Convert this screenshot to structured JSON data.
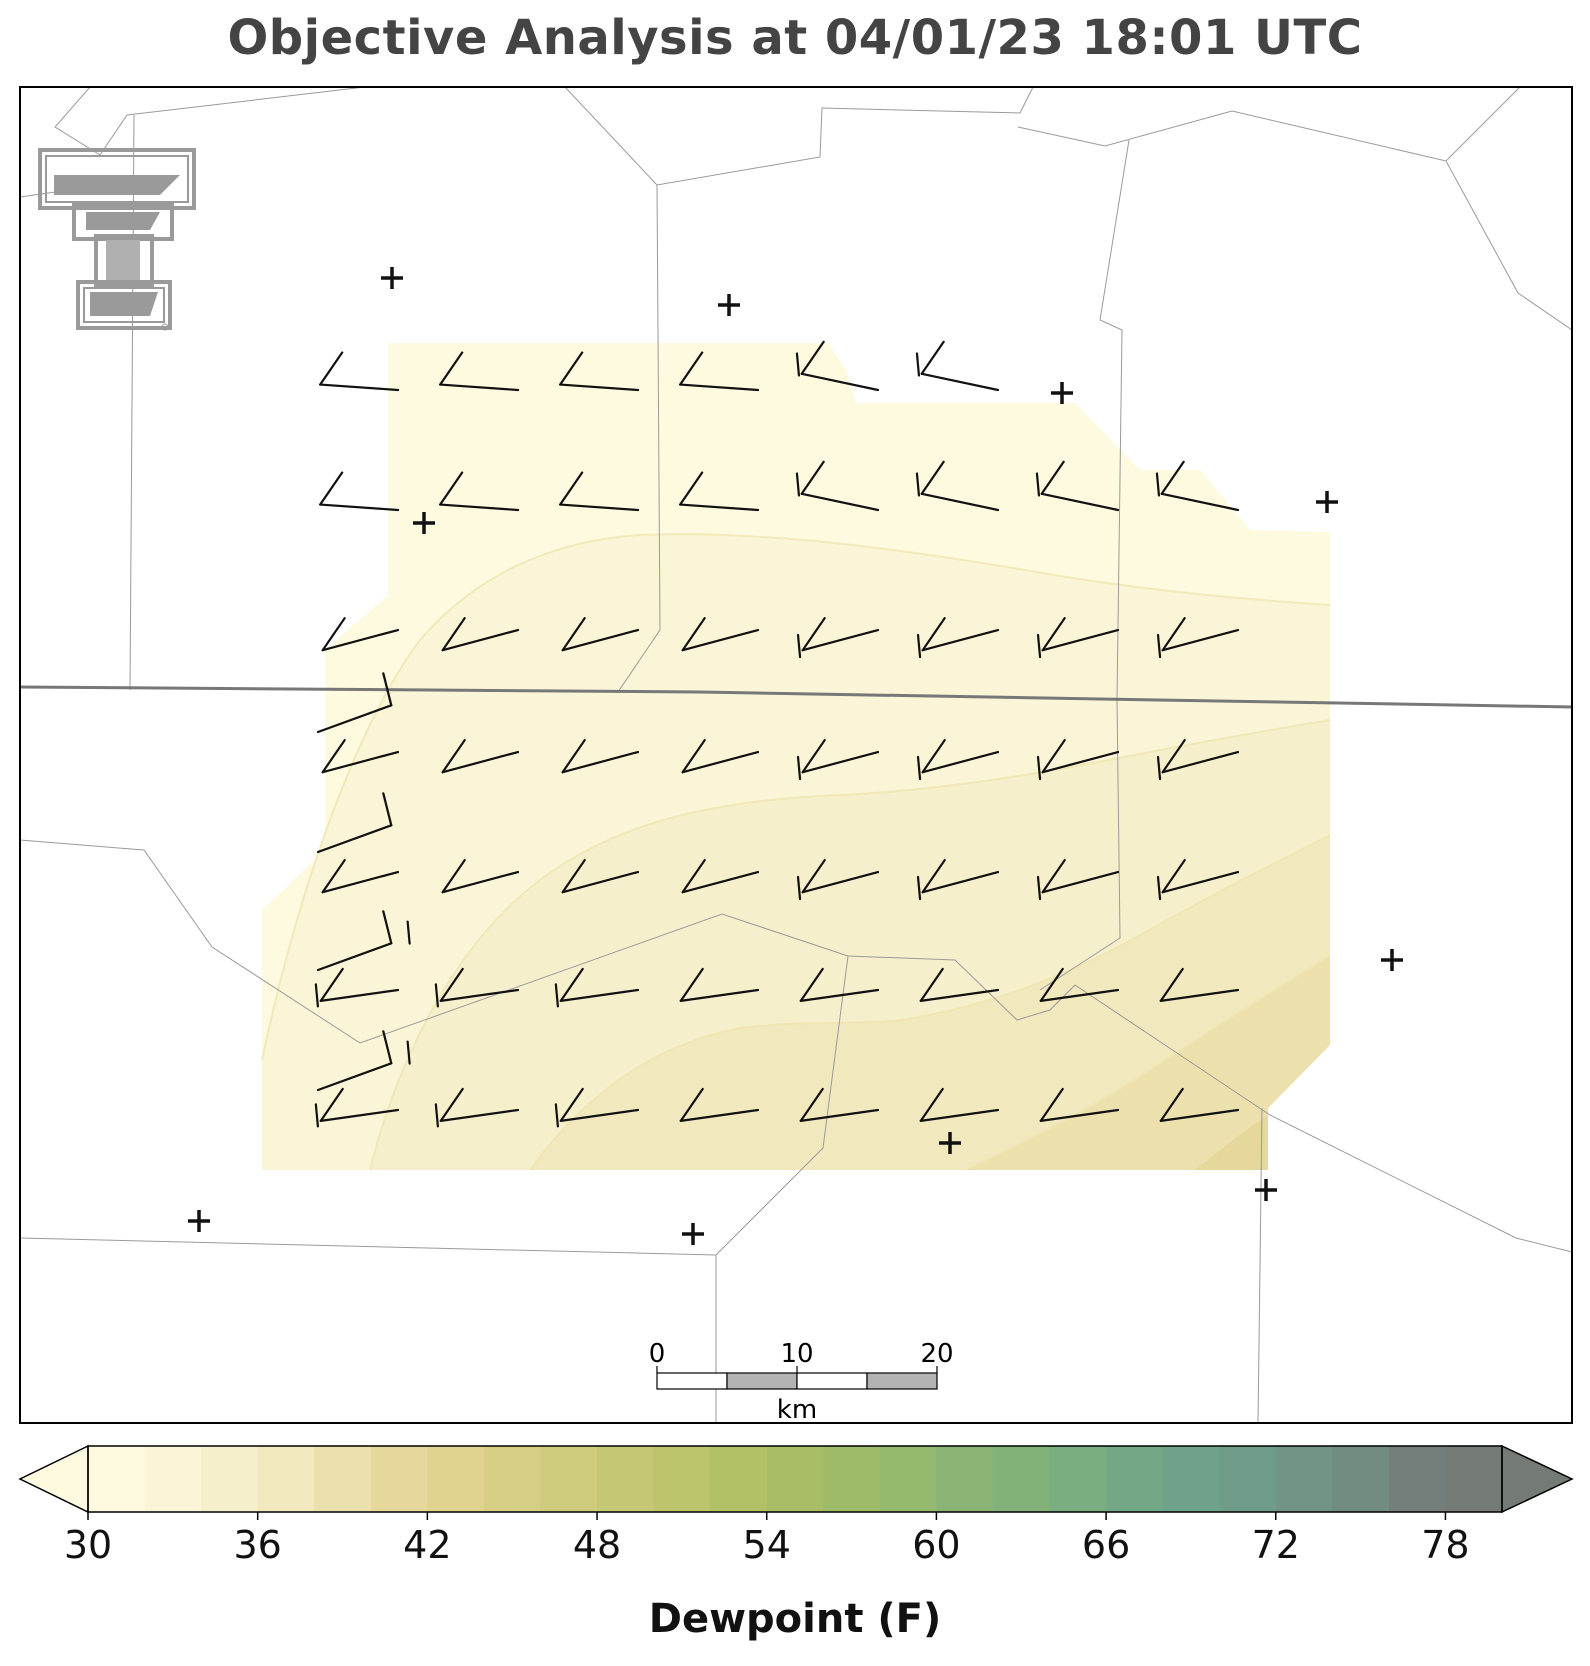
{
  "title": "Objective Analysis at 04/01/23 18:01 UTC",
  "colorbar": {
    "label": "Dewpoint (F)",
    "ticks": [
      "30",
      "36",
      "42",
      "48",
      "54",
      "60",
      "66",
      "72",
      "78"
    ],
    "tick_values": [
      30,
      36,
      42,
      48,
      54,
      60,
      66,
      72,
      78
    ],
    "min": 30,
    "max": 80,
    "step": 2,
    "colors": [
      "#fdfae0",
      "#faf5d6",
      "#f6efcc",
      "#f1e8bd",
      "#ece0ad",
      "#e6d89c",
      "#dfd38f",
      "#d7ce86",
      "#cfcb7d",
      "#c6c774",
      "#bcc46c",
      "#b2c166",
      "#a8bd66",
      "#9ebb6a",
      "#95b86f",
      "#8bb474",
      "#82b17a",
      "#7aad80",
      "#72a886",
      "#6ea28a",
      "#6f9c89",
      "#719486",
      "#738c81",
      "#747f7c",
      "#747a74"
    ],
    "extend": "both"
  },
  "scale_bar": {
    "labels": [
      "0",
      "10",
      "20"
    ],
    "unit": "km"
  },
  "stations": [
    {
      "lon": 1,
      "lat": 1
    }
  ],
  "logo": {
    "name": "texas-tech-logo"
  }
}
